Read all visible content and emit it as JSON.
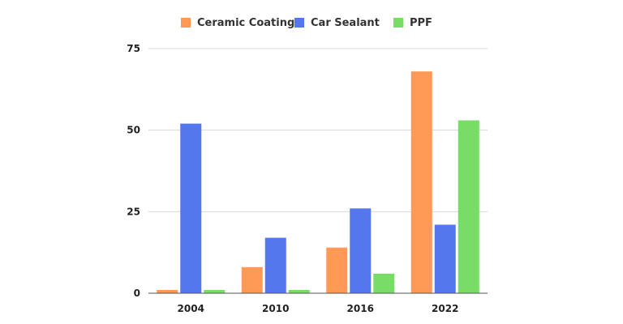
{
  "chart_data": {
    "type": "bar",
    "categories": [
      "2004",
      "2010",
      "2016",
      "2022"
    ],
    "series": [
      {
        "name": "Ceramic Coating",
        "color": "#ff9955",
        "values": [
          1,
          8,
          14,
          68
        ]
      },
      {
        "name": "Car Sealant",
        "color": "#5577ee",
        "values": [
          52,
          17,
          26,
          21
        ]
      },
      {
        "name": "PPF",
        "color": "#77dd66",
        "values": [
          1,
          1,
          6,
          53
        ]
      }
    ],
    "title": "",
    "xlabel": "",
    "ylabel": "",
    "ylim": [
      0,
      75
    ],
    "yticks": [
      "0",
      "25",
      "50",
      "75"
    ],
    "grid": true,
    "legend_position": "top-center"
  }
}
